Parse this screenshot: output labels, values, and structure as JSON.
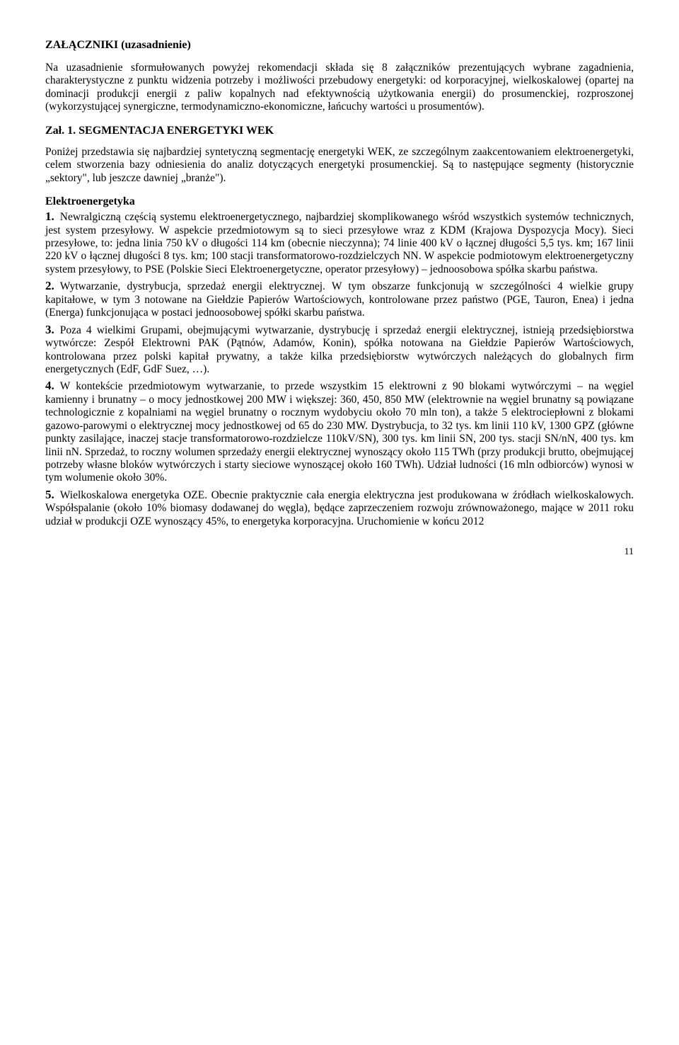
{
  "title": "ZAŁĄCZNIKI (uzasadnienie)",
  "intro": "Na uzasadnienie sformułowanych powyżej rekomendacji składa się 8 załączników prezentujących wybrane zagadnienia, charakterystyczne z punktu widzenia potrzeby i możliwości przebudowy energetyki: od korporacyjnej, wielkoskalowej (opartej na dominacji produkcji energii z paliw kopalnych nad efektywnością użytkowania energii) do prosumenckiej, rozproszonej (wykorzystującej synergiczne, termodynamiczno-ekonomiczne, łańcuchy wartości u prosumentów).",
  "section1_head": "Zał. 1. SEGMENTACJA ENERGETYKI WEK",
  "section1_intro": "Poniżej przedstawia się najbardziej syntetyczną segmentację energetyki WEK, ze szczególnym zaakcentowaniem elektroenergetyki, celem stworzenia bazy odniesienia do analiz dotyczących energetyki prosumenckiej. Są to następujące segmenty (historycznie „sektory\", lub jeszcze dawniej „branże\").",
  "subhead": "Elektroenergetyka",
  "items": [
    {
      "n": "1.",
      "text": "Newralgiczną częścią systemu elektroenergetycznego, najbardziej skomplikowanego wśród wszystkich systemów technicznych, jest system przesyłowy. W aspekcie przedmiotowym są to sieci przesyłowe wraz z KDM (Krajowa Dyspozycja Mocy). Sieci przesyłowe, to: jedna linia 750 kV o długości 114 km (obecnie nieczynna); 74 linie 400 kV o łącznej długości 5,5 tys. km;  167 linii 220 kV o łącznej długości 8 tys. km; 100 stacji transformatorowo-rozdzielczych NN. W aspekcie podmiotowym elektroenergetyczny system przesyłowy, to  PSE (Polskie Sieci Elektroenergetyczne, operator przesyłowy) – jednoosobowa spółka skarbu państwa."
    },
    {
      "n": "2.",
      "text": "Wytwarzanie, dystrybucja, sprzedaż energii elektrycznej. W tym obszarze funkcjonują w szczególności 4 wielkie grupy kapitałowe, w tym 3 notowane na Giełdzie Papierów Wartościowych, kontrolowane przez państwo (PGE, Tauron, Enea) i jedna (Energa) funkcjonująca w postaci jednoosobowej spółki skarbu państwa."
    },
    {
      "n": "3.",
      "text": "Poza 4 wielkimi Grupami, obejmującymi wytwarzanie, dystrybucję i sprzedaż energii elektrycznej, istnieją przedsiębiorstwa wytwórcze: Zespół Elektrowni PAK (Pątnów, Adamów, Konin), spółka notowana na Giełdzie Papierów Wartościowych, kontrolowana przez polski kapitał prywatny, a także kilka przedsiębiorstw wytwórczych należących do globalnych firm energetycznych (EdF, GdF Suez, …)."
    },
    {
      "n": "4.",
      "text": "W kontekście przedmiotowym wytwarzanie, to przede wszystkim 15 elektrowni z 90 blokami wytwórczymi – na węgiel kamienny i brunatny – o mocy jednostkowej 200 MW i większej: 360, 450, 850 MW (elektrownie na węgiel brunatny są powiązane technologicznie z kopalniami na węgiel brunatny o rocznym wydobyciu około 70 mln ton), a także 5 elektrociepłowni z blokami gazowo-parowymi o elektrycznej mocy jednostkowej od 65 do 230 MW. Dystrybucja, to 32 tys. km linii 110 kV, 1300 GPZ (główne punkty zasilające, inaczej stacje transformatorowo-rozdzielcze 110kV/SN), 300 tys. km linii SN, 200 tys. stacji SN/nN, 400 tys. km linii nN. Sprzedaż, to roczny wolumen sprzedaży energii elektrycznej wynoszący około 115 TWh (przy produkcji brutto, obejmującej potrzeby własne bloków wytwórczych i starty sieciowe wynoszącej około 160 TWh). Udział ludności (16 mln odbiorców) wynosi w tym wolumenie około 30%."
    },
    {
      "n": "5.",
      "text": "Wielkoskalowa energetyka OZE. Obecnie praktycznie cała energia elektryczna jest produkowana w źródłach wielkoskalowych. Współspalanie (około 10% biomasy dodawanej do węgla), będące zaprzeczeniem rozwoju zrównoważonego, mające w 2011 roku udział w produkcji OZE wynoszący 45%, to energetyka korporacyjna. Uruchomienie w końcu 2012"
    }
  ],
  "page_number": "11"
}
